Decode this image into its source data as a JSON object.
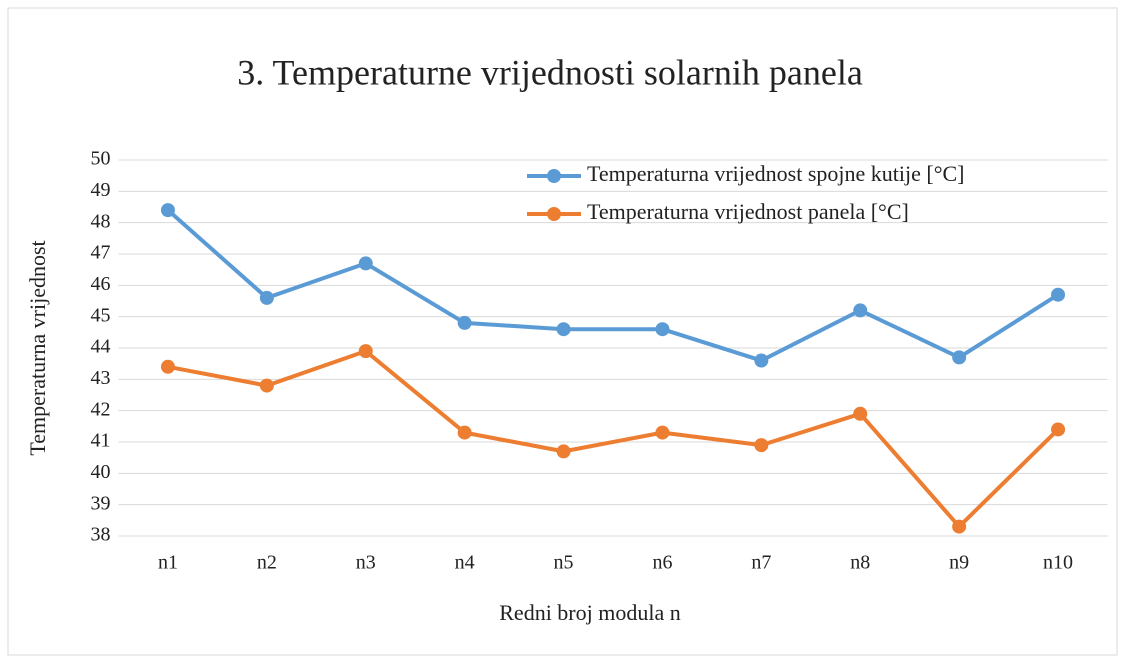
{
  "chart_data": {
    "type": "line",
    "title": "3. Temperaturne vrijednosti solarnih panela",
    "x_label": "Redni broj modula n",
    "y_label": "Temperaturna vrijednost",
    "categories": [
      "n1",
      "n2",
      "n3",
      "n4",
      "n5",
      "n6",
      "n7",
      "n8",
      "n9",
      "n10"
    ],
    "series": [
      {
        "name": "Temperaturna vrijednost spojne kutije [°C]",
        "color": "#5b9bd5",
        "values": [
          48.4,
          45.6,
          46.7,
          44.8,
          44.6,
          44.6,
          43.6,
          45.2,
          43.7,
          45.7
        ]
      },
      {
        "name": "Temperaturna vrijednost panela [°C]",
        "color": "#ed7d31",
        "values": [
          43.4,
          42.8,
          43.9,
          41.3,
          40.7,
          41.3,
          40.9,
          41.9,
          38.3,
          41.4
        ]
      }
    ],
    "ylim": [
      38,
      50
    ],
    "yticks": [
      38,
      39,
      40,
      41,
      42,
      43,
      44,
      45,
      46,
      47,
      48,
      49,
      50
    ],
    "grid": true,
    "legend": "top-right"
  }
}
